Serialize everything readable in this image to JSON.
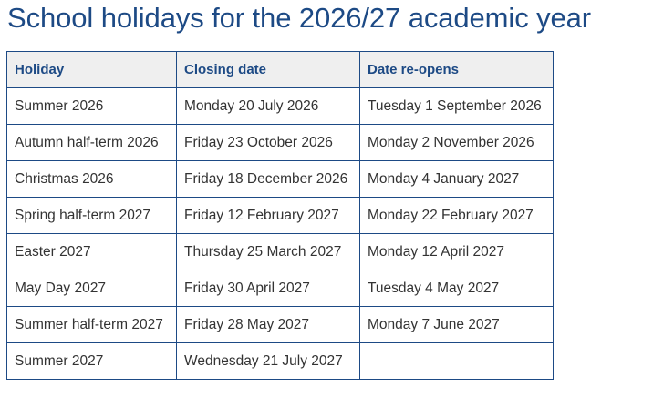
{
  "title": "School holidays for the 2026/27 academic year",
  "colors": {
    "accent": "#1d4a85",
    "header_bg": "#efefef",
    "text": "#333333"
  },
  "table": {
    "headers": [
      "Holiday",
      "Closing date",
      "Date re-opens"
    ],
    "rows": [
      [
        "Summer 2026",
        "Monday 20 July 2026",
        "Tuesday 1 September 2026"
      ],
      [
        "Autumn half-term 2026",
        "Friday 23 October 2026",
        "Monday 2 November 2026"
      ],
      [
        "Christmas 2026",
        "Friday 18 December 2026",
        "Monday 4 January 2027"
      ],
      [
        "Spring half-term 2027",
        "Friday 12 February 2027",
        "Monday 22 February 2027"
      ],
      [
        "Easter 2027",
        "Thursday 25 March 2027",
        "Monday 12 April 2027"
      ],
      [
        "May Day 2027",
        "Friday 30 April 2027",
        "Tuesday 4 May 2027"
      ],
      [
        "Summer half-term 2027",
        "Friday 28 May 2027",
        "Monday 7 June 2027"
      ],
      [
        "Summer 2027",
        "Wednesday 21 July 2027",
        ""
      ]
    ]
  }
}
